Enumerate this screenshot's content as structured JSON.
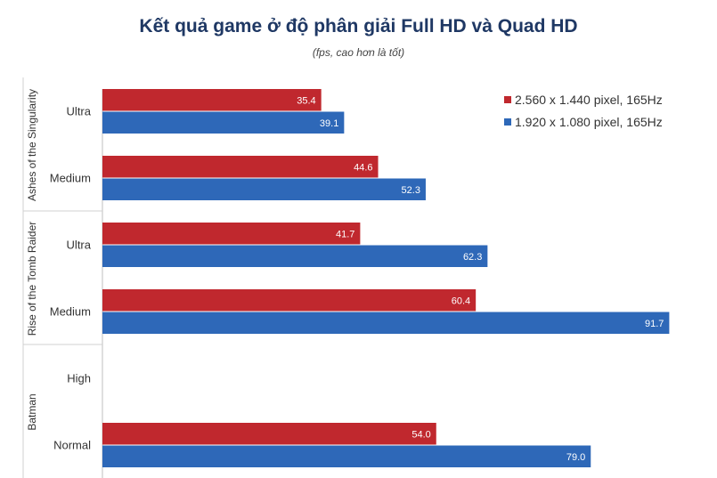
{
  "title": "Kết quả game ở độ phân giải Full HD và Quad HD",
  "subtitle": "(fps, cao hơn là tốt)",
  "colors": {
    "series_1": "#c0282e",
    "series_2": "#2e68b8"
  },
  "chart_data": {
    "type": "bar",
    "orientation": "horizontal",
    "title": "Kết quả game ở độ phân giải Full HD và Quad HD",
    "subtitle": "(fps, cao hơn là tốt)",
    "xlim": [
      0,
      100
    ],
    "grid": false,
    "legend_position": "top-right",
    "groups": [
      {
        "name": "Ashes of the Singularity",
        "categories": [
          "Ultra",
          "Medium"
        ]
      },
      {
        "name": "Rise of the Tomb Raider",
        "categories": [
          "Ultra",
          "Medium"
        ]
      },
      {
        "name": "Batman",
        "categories": [
          "High",
          "Normal"
        ]
      }
    ],
    "series": [
      {
        "name": "2.560 x 1.440 pixel, 165Hz",
        "color": "#c0282e",
        "values": [
          35.4,
          44.6,
          41.7,
          60.4,
          null,
          54.0
        ],
        "labels": [
          "35.4",
          "44.6",
          "41.7",
          "60.4",
          "",
          "54.0"
        ]
      },
      {
        "name": "1.920 x 1.080 pixel, 165Hz",
        "color": "#2e68b8",
        "values": [
          39.1,
          52.3,
          62.3,
          91.7,
          null,
          79.0
        ],
        "labels": [
          "39.1",
          "52.3",
          "62.3",
          "91.7",
          "",
          "79.0"
        ]
      }
    ]
  }
}
